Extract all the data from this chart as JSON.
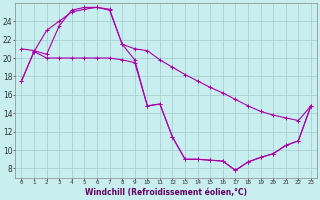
{
  "xlabel": "Windchill (Refroidissement éolien,°C)",
  "bg_color": "#c8eef0",
  "grid_color": "#a0cccc",
  "line_color": "#aa00aa",
  "ylim": [
    7,
    26
  ],
  "xlim": [
    -0.5,
    23.5
  ],
  "yticks": [
    8,
    10,
    12,
    14,
    16,
    18,
    20,
    22,
    24
  ],
  "xticks": [
    0,
    1,
    2,
    3,
    4,
    5,
    6,
    7,
    8,
    9,
    10,
    11,
    12,
    13,
    14,
    15,
    16,
    17,
    18,
    19,
    20,
    21,
    22,
    23
  ],
  "line1_x": [
    0,
    1,
    2,
    3,
    4,
    5,
    6,
    7,
    8,
    9,
    10,
    11,
    12,
    13,
    14,
    15,
    16,
    17,
    18,
    19,
    20,
    21,
    22,
    23
  ],
  "line1_y": [
    21.0,
    20.8,
    20.4,
    23.5,
    25.2,
    25.5,
    25.5,
    25.3,
    21.5,
    21.0,
    20.8,
    19.8,
    19.0,
    18.2,
    17.5,
    16.8,
    16.2,
    15.5,
    14.8,
    14.2,
    13.8,
    13.5,
    13.2,
    14.8
  ],
  "line2_x": [
    0,
    1,
    2,
    3,
    4,
    5,
    6,
    7,
    8,
    9,
    10,
    11,
    12,
    13,
    14,
    15,
    16,
    17,
    18,
    19,
    20,
    21,
    22,
    23
  ],
  "line2_y": [
    17.5,
    20.7,
    23.0,
    24.0,
    25.0,
    25.3,
    25.5,
    25.2,
    21.5,
    19.8,
    14.8,
    15.0,
    11.4,
    9.0,
    9.0,
    8.9,
    8.8,
    7.8,
    8.7,
    9.2,
    9.6,
    10.5,
    11.0,
    14.8
  ],
  "line3_x": [
    0,
    1,
    2,
    3,
    4,
    5,
    6,
    7,
    8,
    9,
    10,
    11,
    12,
    13,
    14,
    15,
    16,
    17,
    18,
    19,
    20,
    21,
    22,
    23
  ],
  "line3_y": [
    17.5,
    20.7,
    20.0,
    20.0,
    20.0,
    20.0,
    20.0,
    20.0,
    19.8,
    19.5,
    14.8,
    15.0,
    11.4,
    9.0,
    9.0,
    8.9,
    8.8,
    7.8,
    8.7,
    9.2,
    9.6,
    10.5,
    11.0,
    14.8
  ]
}
